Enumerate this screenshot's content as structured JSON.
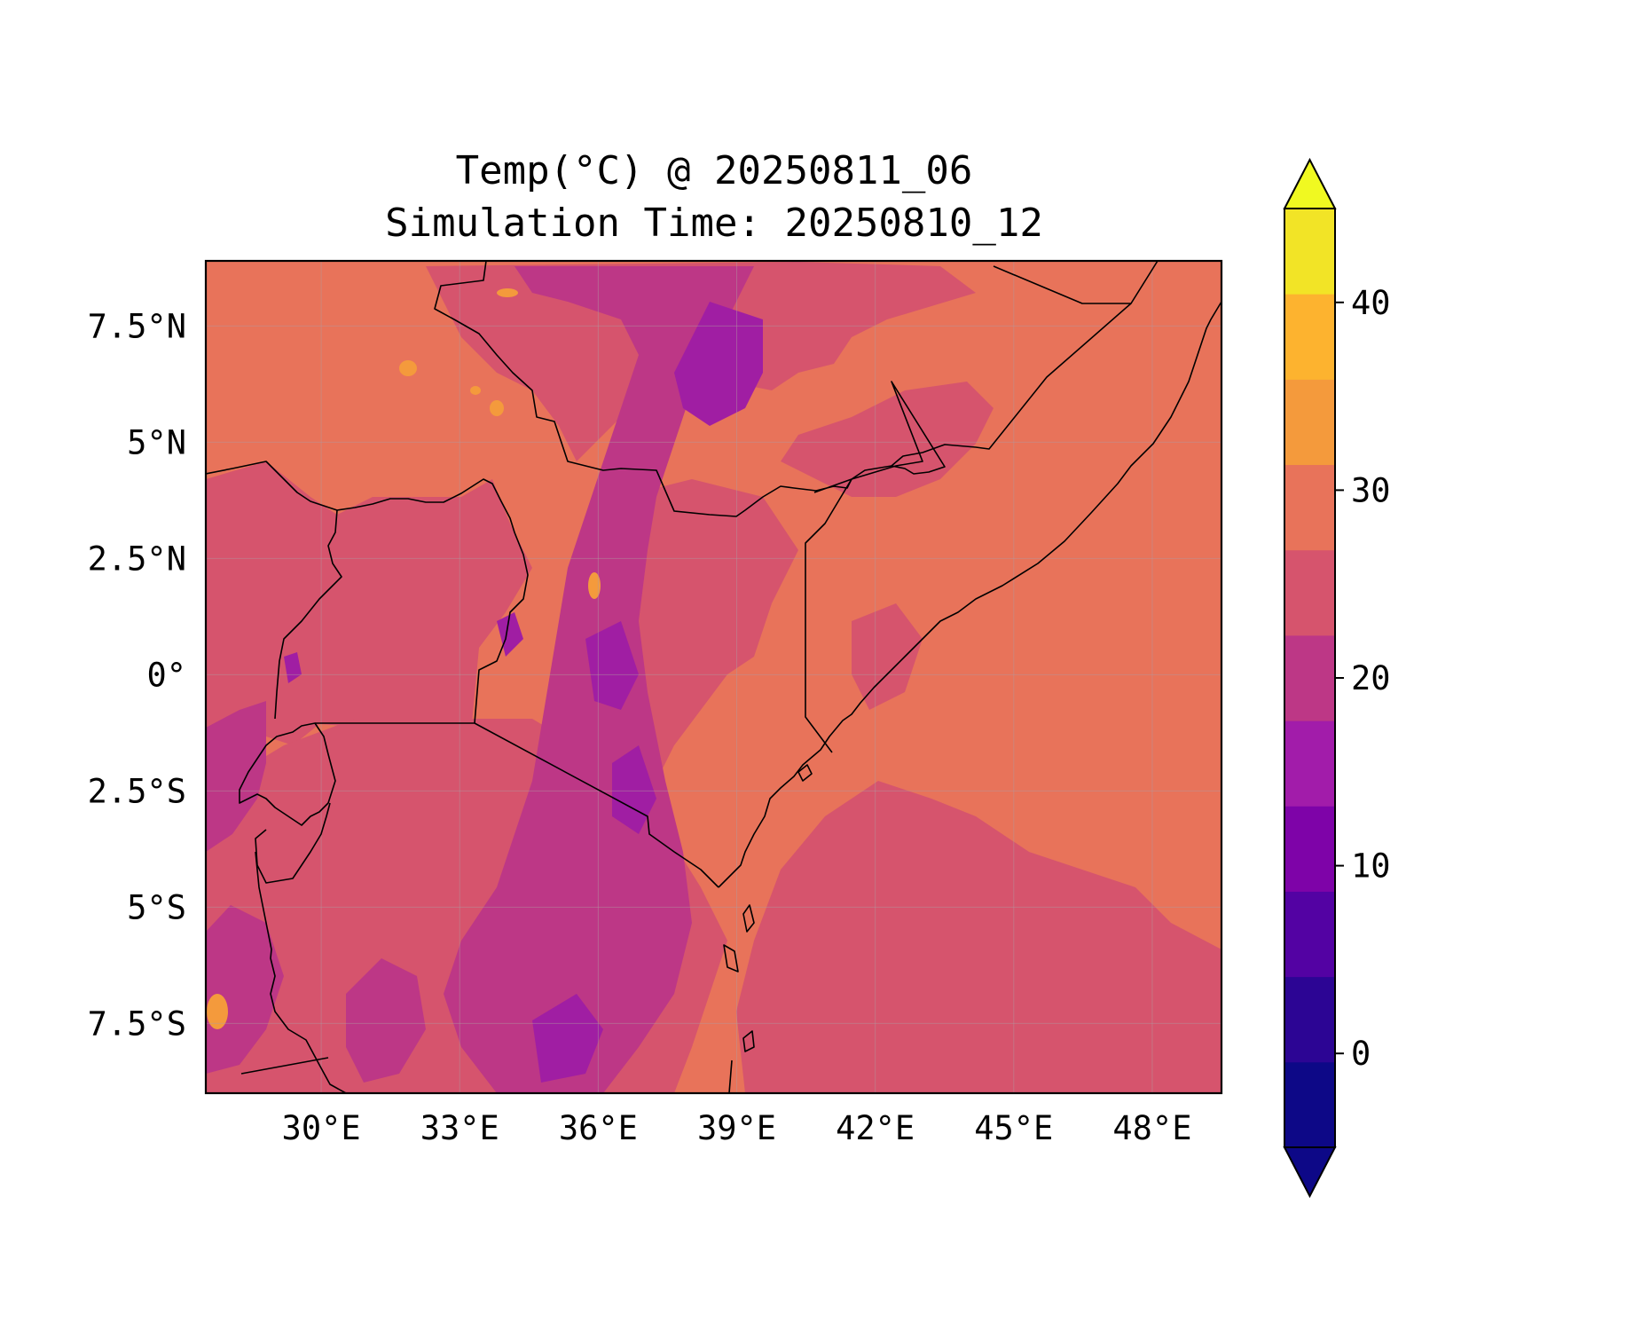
{
  "title": {
    "line1": "Temp(°C) @ 20250811_06",
    "line2": "Simulation Time: 20250810_12"
  },
  "map": {
    "lon_range": [
      27.5,
      49.5
    ],
    "lat_range": [
      -9.0,
      8.9
    ],
    "x_ticks": [
      {
        "value": 30,
        "label": "30°E"
      },
      {
        "value": 33,
        "label": "33°E"
      },
      {
        "value": 36,
        "label": "36°E"
      },
      {
        "value": 39,
        "label": "39°E"
      },
      {
        "value": 42,
        "label": "42°E"
      },
      {
        "value": 45,
        "label": "45°E"
      },
      {
        "value": 48,
        "label": "48°E"
      }
    ],
    "y_ticks": [
      {
        "value": 7.5,
        "label": "7.5°N"
      },
      {
        "value": 5,
        "label": "5°N"
      },
      {
        "value": 2.5,
        "label": "2.5°N"
      },
      {
        "value": 0,
        "label": "0°"
      },
      {
        "value": -2.5,
        "label": "2.5°S"
      },
      {
        "value": -5,
        "label": "5°S"
      },
      {
        "value": -7.5,
        "label": "7.5°S"
      }
    ],
    "gridlines": true,
    "field_colors": {
      "c25_30": "#e8735a",
      "c20_25": "#d6546d",
      "c15_20": "#bd3786",
      "c10_15": "#a01ea3",
      "c30_35": "#f49a3c"
    }
  },
  "colorbar": {
    "levels": [
      -5,
      0,
      5,
      10,
      15,
      20,
      25,
      30,
      35,
      40,
      45
    ],
    "colors": [
      "#0d0887",
      "#2c0594",
      "#5302a3",
      "#7e03a8",
      "#a21caa",
      "#bd3786",
      "#d6546d",
      "#e8735a",
      "#f49a3c",
      "#fdb32f",
      "#f2e426"
    ],
    "under_color": "#0d0887",
    "over_color": "#f0f921",
    "extend": "both",
    "ticks": [
      {
        "value": 0,
        "label": "0"
      },
      {
        "value": 10,
        "label": "10"
      },
      {
        "value": 20,
        "label": "20"
      },
      {
        "value": 30,
        "label": "30"
      },
      {
        "value": 40,
        "label": "40"
      }
    ]
  }
}
